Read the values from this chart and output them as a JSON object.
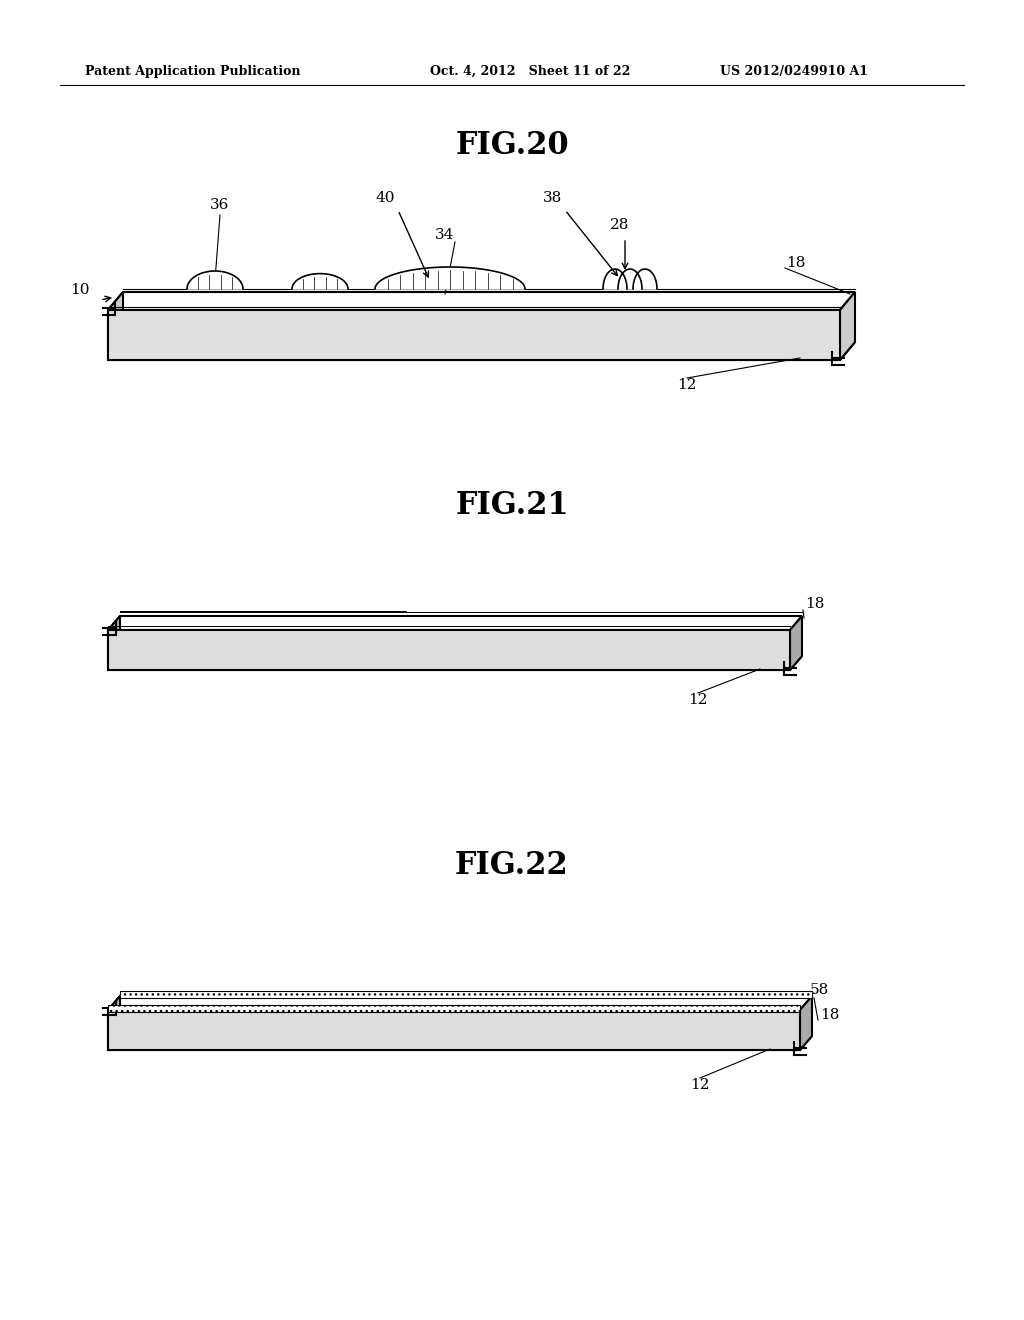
{
  "bg_color": "#ffffff",
  "text_color": "#000000",
  "header_left": "Patent Application Publication",
  "header_center": "Oct. 4, 2012   Sheet 11 of 22",
  "header_right": "US 2012/0249910 A1",
  "fig20_title": "FIG.20",
  "fig21_title": "FIG.21",
  "fig22_title": "FIG.22",
  "line_color": "#000000",
  "line_width": 1.5,
  "thin_line": 0.8
}
